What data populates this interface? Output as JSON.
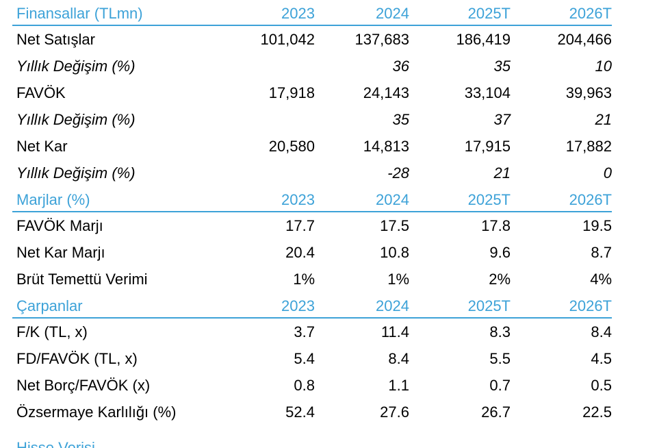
{
  "sections": [
    {
      "header": {
        "label": "Finansallar (TLmn)",
        "years": [
          "2023",
          "2024",
          "2025T",
          "2026T"
        ]
      },
      "rows": [
        {
          "label": "Net Satışlar",
          "italic": false,
          "values": [
            "101,042",
            "137,683",
            "186,419",
            "204,466"
          ]
        },
        {
          "label": "Yıllık Değişim (%)",
          "italic": true,
          "values": [
            "",
            "36",
            "35",
            "10"
          ]
        },
        {
          "label": "FAVÖK",
          "italic": false,
          "values": [
            "17,918",
            "24,143",
            "33,104",
            "39,963"
          ]
        },
        {
          "label": "Yıllık Değişim (%)",
          "italic": true,
          "values": [
            "",
            "35",
            "37",
            "21"
          ]
        },
        {
          "label": "Net Kar",
          "italic": false,
          "values": [
            "20,580",
            "14,813",
            "17,915",
            "17,882"
          ]
        },
        {
          "label": "Yıllık Değişim (%)",
          "italic": true,
          "values": [
            "",
            "-28",
            "21",
            "0"
          ]
        }
      ]
    },
    {
      "header": {
        "label": "Marjlar (%)",
        "years": [
          "2023",
          "2024",
          "2025T",
          "2026T"
        ]
      },
      "rows": [
        {
          "label": "FAVÖK Marjı",
          "italic": false,
          "values": [
            "17.7",
            "17.5",
            "17.8",
            "19.5"
          ]
        },
        {
          "label": "Net Kar Marjı",
          "italic": false,
          "values": [
            "20.4",
            "10.8",
            "9.6",
            "8.7"
          ]
        },
        {
          "label": "Brüt Temettü Verimi",
          "italic": false,
          "values": [
            "1%",
            "1%",
            "2%",
            "4%"
          ]
        }
      ]
    },
    {
      "header": {
        "label": "Çarpanlar",
        "years": [
          "2023",
          "2024",
          "2025T",
          "2026T"
        ]
      },
      "rows": [
        {
          "label": "F/K (TL, x)",
          "italic": false,
          "values": [
            "3.7",
            "11.4",
            "8.3",
            "8.4"
          ]
        },
        {
          "label": "FD/FAVÖK (TL, x)",
          "italic": false,
          "values": [
            "5.4",
            "8.4",
            "5.5",
            "4.5"
          ]
        },
        {
          "label": "Net Borç/FAVÖK (x)",
          "italic": false,
          "values": [
            "0.8",
            "1.1",
            "0.7",
            "0.5"
          ]
        },
        {
          "label": "Özsermaye Karlılığı (%)",
          "italic": false,
          "values": [
            "52.4",
            "27.6",
            "26.7",
            "22.5"
          ]
        }
      ]
    }
  ],
  "footer_section_label": "Hisse Verisi",
  "accent_color": "#3da2d8"
}
